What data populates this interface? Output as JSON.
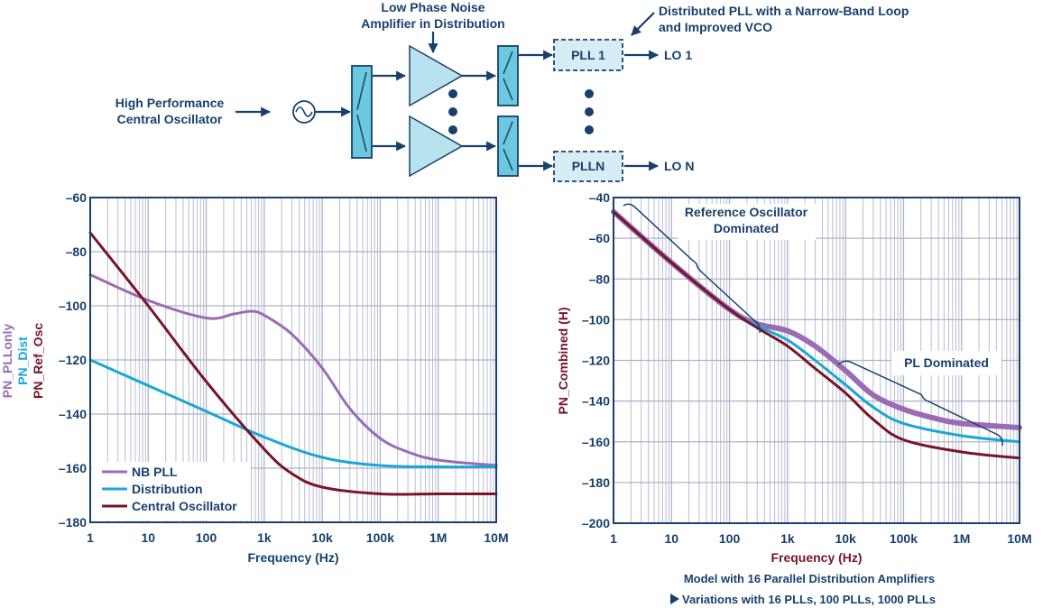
{
  "diagram": {
    "amp_label": [
      "Low Phase Noise",
      "Amplifier in Distribution"
    ],
    "pll_label": [
      "Distributed PLL with a Narrow-Band Loop",
      "and Improved VCO"
    ],
    "osc_label": [
      "High Performance",
      "Central Oscillator"
    ],
    "pll1": "PLL 1",
    "plln": "PLLN",
    "lo1": "LO 1",
    "lon": "LO N",
    "colors": {
      "switch": "#6cc8de",
      "amp": "#b9e2ef",
      "pll_box": "#d6edf5",
      "ink": "#17406d"
    }
  },
  "chart_data": [
    {
      "type": "line",
      "x_scale": "log",
      "xlim": [
        1,
        10000000
      ],
      "ylim": [
        -180,
        -60
      ],
      "grid": true,
      "legend_placement": "bottom-left",
      "xlabel": "Frequency (Hz)",
      "ylabels": [
        {
          "text": "PN_PLLonly",
          "color": "#9b6bb5"
        },
        {
          "text": "PN_Dist",
          "color": "#1aa7d4"
        },
        {
          "text": "PN_Ref_Osc",
          "color": "#7a1428"
        }
      ],
      "x_ticks": [
        1,
        10,
        100,
        1000,
        10000,
        100000,
        1000000,
        10000000
      ],
      "x_tick_labels": [
        "1",
        "10",
        "100",
        "1k",
        "10k",
        "100k",
        "1M",
        "10M"
      ],
      "y_ticks": [
        -60,
        -80,
        -100,
        -120,
        -140,
        -160,
        -180
      ],
      "y_tick_labels": [
        "–60",
        "–80",
        "–100",
        "–120",
        "–140",
        "–160",
        "–180"
      ],
      "series": [
        {
          "name": "NB PLL",
          "color": "#9b6bb5",
          "width": 3,
          "x": [
            1,
            10,
            100,
            300,
            600,
            1000,
            3000,
            10000,
            30000,
            100000,
            300000,
            1000000,
            10000000
          ],
          "y": [
            -88.5,
            -98,
            -104.5,
            -103,
            -102,
            -103.5,
            -110.5,
            -123,
            -138,
            -149,
            -154,
            -157,
            -159
          ]
        },
        {
          "name": "Distribution",
          "color": "#1aa7d4",
          "width": 3,
          "x": [
            1,
            10,
            100,
            1000,
            10000,
            100000,
            1000000,
            10000000
          ],
          "y": [
            -120,
            -129.5,
            -139,
            -148.5,
            -156,
            -159,
            -159.5,
            -159.5
          ]
        },
        {
          "name": "Central Oscillator",
          "color": "#7a1428",
          "width": 3,
          "x": [
            1,
            10,
            100,
            1000,
            3000,
            10000,
            100000,
            1000000,
            10000000
          ],
          "y": [
            -73,
            -100,
            -128,
            -153,
            -162,
            -167,
            -169.5,
            -169.5,
            -169.5
          ]
        }
      ]
    },
    {
      "type": "line",
      "x_scale": "log",
      "xlim": [
        1,
        10000000
      ],
      "ylim": [
        -200,
        -40
      ],
      "grid": true,
      "xlabel": "Frequency (Hz)",
      "ylabel": "PN_Combined (H)",
      "label_color": "#7a1428",
      "x_ticks": [
        1,
        10,
        100,
        1000,
        10000,
        100000,
        1000000,
        10000000
      ],
      "x_tick_labels": [
        "1",
        "10",
        "100",
        "1k",
        "10k",
        "100k",
        "1M",
        "10M"
      ],
      "y_ticks": [
        -40,
        -60,
        -80,
        -100,
        -120,
        -140,
        -160,
        -180,
        -200
      ],
      "y_tick_labels": [
        "–40",
        "–60",
        "–80",
        "–100",
        "–120",
        "–140",
        "–160",
        "–180",
        "–200"
      ],
      "annotations": {
        "ref": [
          "Reference Oscillator",
          "Dominated"
        ],
        "pl": "PL Dominated"
      },
      "series": [
        {
          "color": "#9b6bb5",
          "width": 6,
          "x": [
            1,
            10,
            100,
            300,
            1000,
            3000,
            10000,
            30000,
            100000,
            300000,
            1000000,
            10000000
          ],
          "y": [
            -47,
            -72,
            -95,
            -102,
            -105.5,
            -113,
            -125,
            -137,
            -144,
            -148,
            -151,
            -153
          ]
        },
        {
          "color": "#1aa7d4",
          "width": 3,
          "x": [
            1,
            10,
            100,
            300,
            1000,
            3000,
            10000,
            30000,
            100000,
            1000000,
            10000000
          ],
          "y": [
            -47,
            -72,
            -95,
            -103,
            -110,
            -120,
            -132,
            -143,
            -151,
            -157,
            -160
          ]
        },
        {
          "color": "#7a1428",
          "width": 3,
          "x": [
            1,
            10,
            100,
            300,
            1000,
            3000,
            10000,
            30000,
            100000,
            1000000,
            10000000
          ],
          "y": [
            -47,
            -72,
            -95,
            -104,
            -113,
            -124,
            -136,
            -149,
            -159,
            -165,
            -168
          ]
        }
      ]
    }
  ],
  "caption": {
    "line1": "Model with 16 Parallel Distribution Amplifiers",
    "line2": "Variations with 16 PLLs, 100 PLLs, 1000 PLLs"
  }
}
